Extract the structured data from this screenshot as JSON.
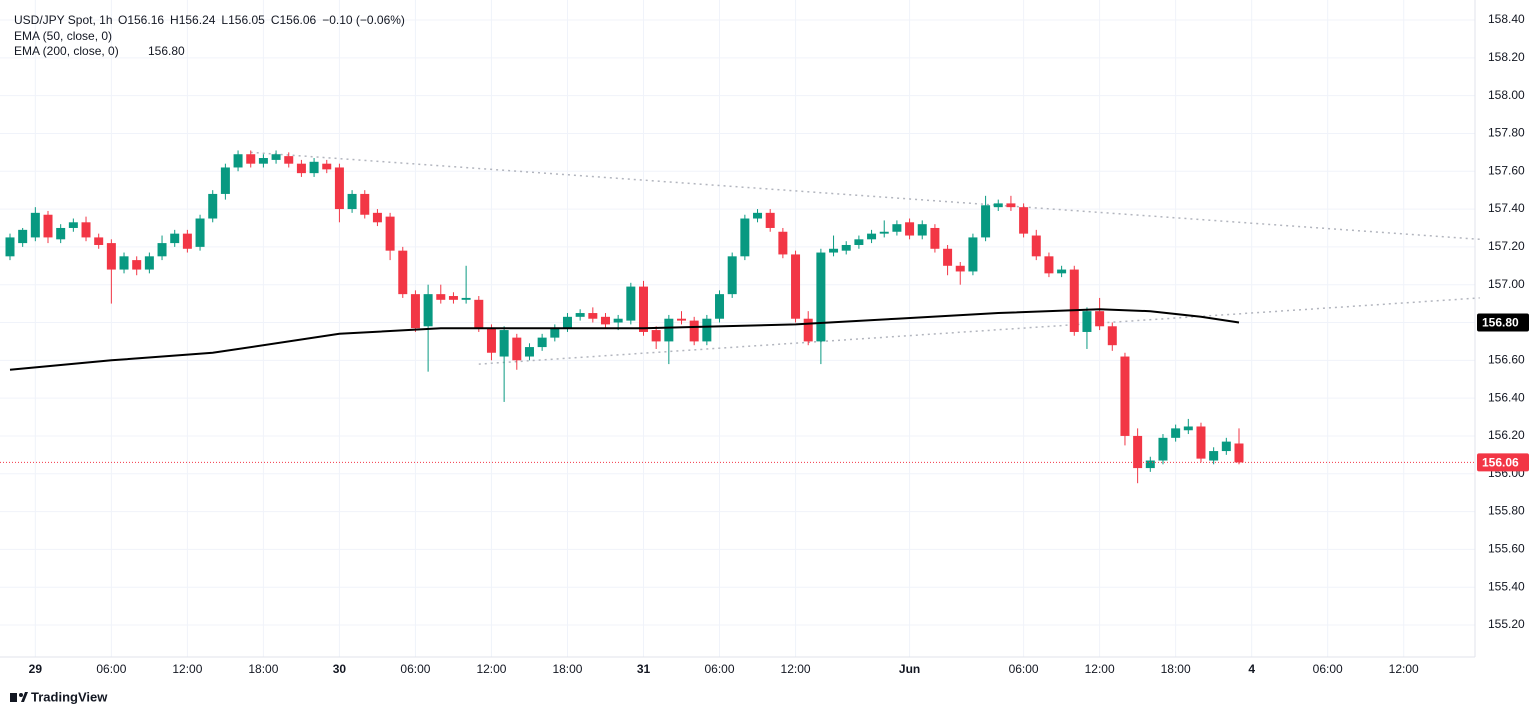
{
  "chart_data": {
    "type": "candlestick",
    "title": "USD/JPY Spot, 1h",
    "header_values": [
      "O156.16",
      "H156.24",
      "L156.05",
      "C156.06",
      "−0.10 (−0.06%)"
    ],
    "indicators": [
      "EMA (50, close, 0)",
      "EMA (200, close, 0)"
    ],
    "watermark": "TradingView",
    "up_color": "#089981",
    "down_color": "#f23645",
    "grid": true,
    "categories": [
      null,
      null,
      "29",
      null,
      null,
      null,
      null,
      null,
      "06:00",
      null,
      null,
      null,
      null,
      null,
      "12:00",
      null,
      null,
      null,
      null,
      null,
      "18:00",
      null,
      null,
      null,
      null,
      null,
      "30",
      null,
      null,
      null,
      null,
      null,
      "06:00",
      null,
      null,
      null,
      null,
      null,
      "12:00",
      null,
      null,
      null,
      null,
      null,
      "18:00",
      null,
      null,
      null,
      null,
      null,
      "31",
      null,
      null,
      null,
      null,
      null,
      "06:00",
      null,
      null,
      null,
      null,
      null,
      "12:00",
      null,
      null,
      null,
      null,
      null,
      null,
      null,
      null,
      "Jun",
      null,
      null,
      null,
      null,
      null,
      null,
      null,
      null,
      "06:00",
      null,
      null,
      null,
      null,
      null,
      "12:00",
      null,
      null,
      null,
      null,
      null,
      "18:00",
      null,
      null,
      null,
      null,
      null,
      "4",
      null,
      null,
      null,
      null,
      null,
      "06:00",
      null,
      null,
      null,
      null,
      null,
      "12:00",
      null,
      null,
      null,
      null,
      null,
      null
    ],
    "open": [
      157.15,
      157.22,
      157.25,
      157.37,
      157.24,
      157.3,
      157.33,
      157.25,
      157.22,
      157.08,
      157.13,
      157.08,
      157.15,
      157.22,
      157.27,
      157.2,
      157.35,
      157.48,
      157.62,
      157.69,
      157.64,
      157.66,
      157.68,
      157.64,
      157.59,
      157.64,
      157.62,
      157.4,
      157.48,
      157.38,
      157.36,
      157.18,
      156.95,
      156.78,
      156.95,
      156.94,
      156.92,
      156.92,
      156.77,
      156.62,
      156.72,
      156.62,
      156.67,
      156.72,
      156.77,
      156.83,
      156.85,
      156.83,
      156.8,
      156.81,
      156.99,
      156.76,
      156.7,
      156.82,
      156.81,
      156.7,
      156.82,
      156.95,
      157.15,
      157.35,
      157.38,
      157.28,
      157.16,
      156.82,
      156.7,
      157.17,
      157.18,
      157.21,
      157.24,
      157.27,
      157.28,
      157.33,
      157.26,
      157.3,
      157.19,
      157.1,
      157.07,
      157.25,
      157.41,
      157.43,
      157.41,
      157.26,
      157.15,
      157.06,
      157.08,
      156.75,
      156.86,
      156.78,
      156.62,
      156.2,
      156.03,
      156.07,
      156.19,
      156.23,
      156.25,
      156.07,
      156.12,
      156.16,
      null,
      null,
      null,
      null,
      null,
      null,
      null,
      null,
      null,
      null,
      null,
      null,
      null,
      null,
      null,
      null,
      null,
      null,
      null
    ],
    "high": [
      157.27,
      157.3,
      157.41,
      157.39,
      157.32,
      157.35,
      157.36,
      157.27,
      157.24,
      157.17,
      157.15,
      157.17,
      157.26,
      157.29,
      157.29,
      157.37,
      157.5,
      157.64,
      157.71,
      157.71,
      157.69,
      157.71,
      157.7,
      157.66,
      157.67,
      157.66,
      157.64,
      157.5,
      157.5,
      157.4,
      157.38,
      157.2,
      156.97,
      157.0,
      157.0,
      156.96,
      157.1,
      156.94,
      156.79,
      156.78,
      156.74,
      156.69,
      156.74,
      156.79,
      156.85,
      156.87,
      156.88,
      156.85,
      156.84,
      157.01,
      157.02,
      156.78,
      156.84,
      156.86,
      156.83,
      156.84,
      156.97,
      157.17,
      157.37,
      157.4,
      157.4,
      157.3,
      157.18,
      156.86,
      157.19,
      157.26,
      157.23,
      157.26,
      157.29,
      157.34,
      157.34,
      157.35,
      157.34,
      157.32,
      157.21,
      157.12,
      157.27,
      157.47,
      157.45,
      157.47,
      157.43,
      157.29,
      157.17,
      157.1,
      157.1,
      156.88,
      156.93,
      156.8,
      156.64,
      156.24,
      156.09,
      156.21,
      156.26,
      156.29,
      156.27,
      156.14,
      156.19,
      156.24,
      null,
      null,
      null,
      null,
      null,
      null,
      null,
      null,
      null,
      null,
      null,
      null,
      null,
      null,
      null,
      null,
      null,
      null,
      null
    ],
    "low": [
      157.13,
      157.2,
      157.23,
      157.22,
      157.22,
      157.28,
      157.23,
      157.19,
      156.9,
      157.06,
      157.05,
      157.06,
      157.13,
      157.2,
      157.17,
      157.18,
      157.33,
      157.45,
      157.6,
      157.62,
      157.62,
      157.64,
      157.62,
      157.57,
      157.57,
      157.59,
      157.33,
      157.38,
      157.35,
      157.31,
      157.13,
      156.93,
      156.75,
      156.54,
      156.9,
      156.9,
      156.9,
      156.75,
      156.6,
      156.38,
      156.55,
      156.6,
      156.65,
      156.7,
      156.75,
      156.81,
      156.8,
      156.77,
      156.76,
      156.79,
      156.73,
      156.66,
      156.58,
      156.79,
      156.68,
      156.68,
      156.8,
      156.93,
      157.13,
      157.33,
      157.28,
      157.14,
      156.8,
      156.68,
      156.58,
      157.15,
      157.16,
      157.19,
      157.22,
      157.25,
      157.26,
      157.24,
      157.24,
      157.17,
      157.05,
      157.0,
      157.05,
      157.23,
      157.39,
      157.39,
      157.25,
      157.13,
      157.04,
      157.04,
      156.73,
      156.66,
      156.76,
      156.65,
      156.15,
      155.95,
      156.01,
      156.05,
      156.17,
      156.21,
      156.06,
      156.05,
      156.1,
      156.05,
      null,
      null,
      null,
      null,
      null,
      null,
      null,
      null,
      null,
      null,
      null,
      null,
      null,
      null,
      null,
      null,
      null,
      null,
      null
    ],
    "close": [
      157.25,
      157.29,
      157.38,
      157.25,
      157.3,
      157.33,
      157.25,
      157.21,
      157.08,
      157.15,
      157.08,
      157.15,
      157.22,
      157.27,
      157.19,
      157.35,
      157.48,
      157.62,
      157.69,
      157.64,
      157.67,
      157.69,
      157.64,
      157.59,
      157.65,
      157.61,
      157.4,
      157.48,
      157.37,
      157.33,
      157.18,
      156.95,
      156.77,
      156.95,
      156.92,
      156.92,
      156.93,
      156.77,
      156.64,
      156.76,
      156.6,
      156.67,
      156.72,
      156.77,
      156.83,
      156.85,
      156.82,
      156.79,
      156.82,
      156.99,
      156.75,
      156.7,
      156.82,
      156.81,
      156.7,
      156.82,
      156.95,
      157.15,
      157.35,
      157.38,
      157.3,
      157.16,
      156.82,
      156.7,
      157.17,
      157.19,
      157.21,
      157.24,
      157.27,
      157.28,
      157.32,
      157.26,
      157.32,
      157.19,
      157.1,
      157.07,
      157.25,
      157.42,
      157.43,
      157.41,
      157.27,
      157.15,
      157.06,
      157.08,
      156.75,
      156.86,
      156.78,
      156.68,
      156.2,
      156.03,
      156.07,
      156.19,
      156.24,
      156.25,
      156.08,
      156.12,
      156.17,
      156.06,
      null,
      null,
      null,
      null,
      null,
      null,
      null,
      null,
      null,
      null,
      null,
      null,
      null,
      null,
      null,
      null,
      null,
      null,
      null
    ],
    "lines": [
      {
        "name": "EMA (200, close, 0)",
        "color": "#000000",
        "x": [
          0,
          8,
          16,
          26,
          34,
          50,
          62,
          70,
          78,
          86,
          90,
          94,
          97
        ],
        "values": [
          156.55,
          156.6,
          156.64,
          156.74,
          156.77,
          156.77,
          156.79,
          156.82,
          156.85,
          156.87,
          156.86,
          156.83,
          156.8
        ]
      }
    ],
    "trendlines": [
      {
        "color": "#b2b5be",
        "x": [
          19,
          116
        ],
        "values": [
          157.7,
          157.24
        ]
      },
      {
        "color": "#b2b5be",
        "x": [
          37,
          116
        ],
        "values": [
          156.58,
          156.93
        ]
      }
    ],
    "price_badges": [
      {
        "label": "156.80",
        "value": 156.8,
        "color": "#000000"
      },
      {
        "label": "156.06",
        "value": 156.06,
        "color": "#f23645"
      }
    ],
    "ylim": [
      155.2,
      158.4
    ],
    "yticks": [
      {
        "value": 155.2,
        "label": "155.20"
      },
      {
        "value": 155.4,
        "label": "155.40"
      },
      {
        "value": 155.6,
        "label": "155.60"
      },
      {
        "value": 155.8,
        "label": "155.80"
      },
      {
        "value": 156.0,
        "label": "156.00"
      },
      {
        "value": 156.2,
        "label": "156.20"
      },
      {
        "value": 156.4,
        "label": "156.40"
      },
      {
        "value": 156.6,
        "label": "156.60"
      },
      {
        "value": 156.8,
        "label": "156.80"
      },
      {
        "value": 157.0,
        "label": "157.00"
      },
      {
        "value": 157.2,
        "label": "157.20"
      },
      {
        "value": 157.4,
        "label": "157.40"
      },
      {
        "value": 157.6,
        "label": "157.60"
      },
      {
        "value": 157.8,
        "label": "157.80"
      },
      {
        "value": 158.0,
        "label": "158.00"
      },
      {
        "value": 158.2,
        "label": "158.20"
      },
      {
        "value": 158.4,
        "label": "158.40"
      }
    ]
  }
}
